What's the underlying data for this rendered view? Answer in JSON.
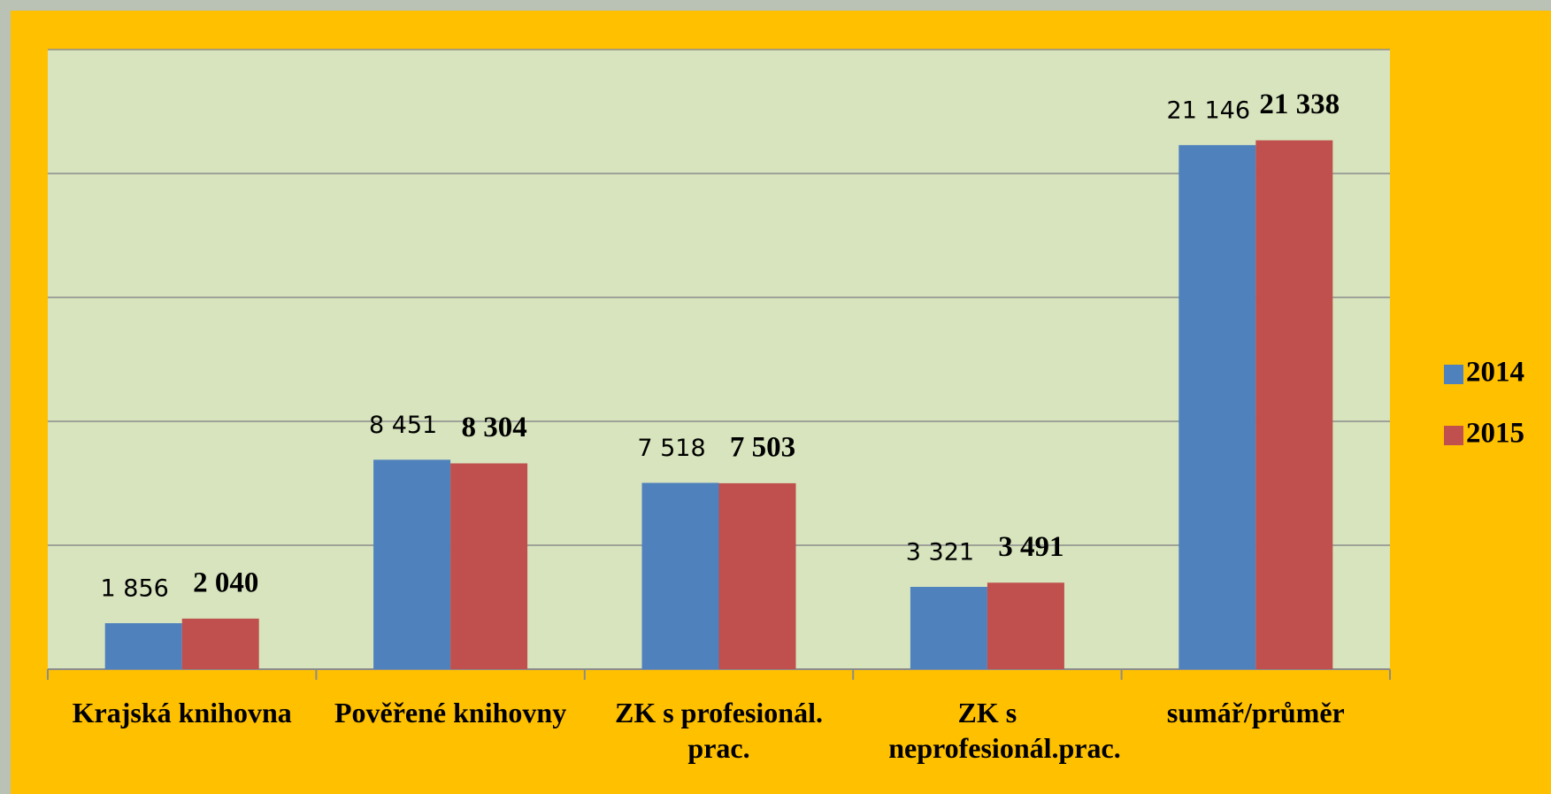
{
  "chart_data": {
    "type": "bar",
    "categories": [
      "Krajská knihovna",
      "Pověřené knihovny",
      "ZK s profesionál. prac.",
      "ZK s neprofesionál.prac.",
      "sumář/průměr"
    ],
    "series": [
      {
        "name": "2014",
        "color": "#4f81bd",
        "values": [
          1856,
          8451,
          7518,
          3321,
          21146
        ],
        "value_labels": [
          "1 856",
          "8 451",
          "7 518",
          "3 321",
          "21 146"
        ]
      },
      {
        "name": "2015",
        "color": "#c0504d",
        "values": [
          2040,
          8304,
          7503,
          3491,
          21338
        ],
        "value_labels": [
          "2 040",
          "8 304",
          "7 503",
          "3 491",
          "21 338"
        ]
      }
    ],
    "ylim": [
      0,
      25000
    ],
    "yticks": [
      0,
      5000,
      10000,
      15000,
      20000,
      25000
    ],
    "grid": true,
    "legend": "right"
  }
}
